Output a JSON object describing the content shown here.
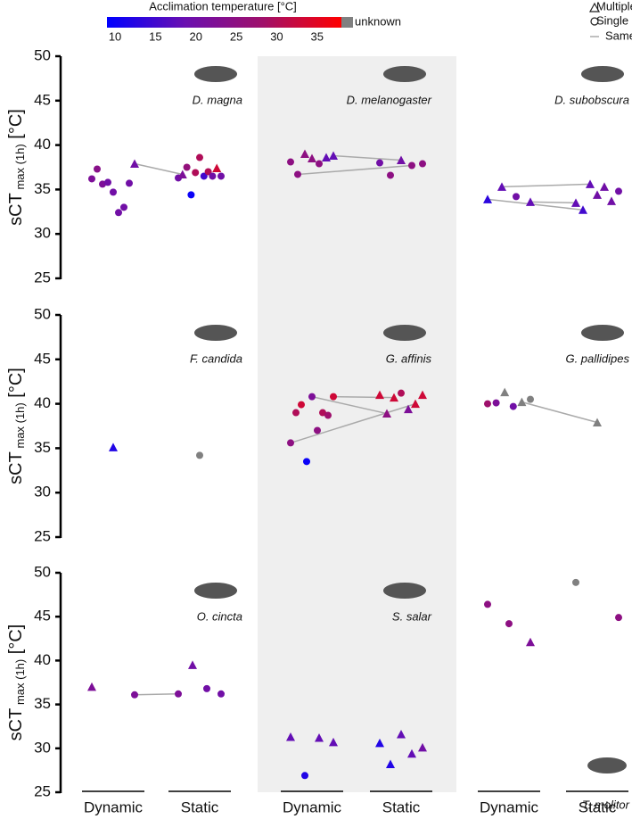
{
  "chart_data": {
    "type": "strip",
    "ylabel": "sCT",
    "ylabel_sub": "max (1h)",
    "ylabel_unit": "[°C]",
    "groups": [
      "Dynamic",
      "Static"
    ],
    "ylim": [
      25,
      50
    ],
    "yticks": [
      25,
      30,
      35,
      40,
      45,
      50
    ],
    "line_color": "#aaaaaa",
    "colorbar": {
      "title": "Acclimation temperature [°C]",
      "lim": [
        9,
        38
      ],
      "ticks": [
        10,
        15,
        20,
        25,
        30,
        35
      ],
      "colors": [
        "#0000ff",
        "#6a0fb0",
        "#a0106a",
        "#ff0000"
      ],
      "unknown_label": "unknown",
      "unknown_color": "#808080"
    },
    "legend": [
      "Multiple measurements",
      "Single measurement",
      "Same publication"
    ],
    "panels": [
      {
        "species": "D. magna",
        "dynamic": [
          {
            "value": 36.2,
            "temp": 22,
            "marker": "circle"
          },
          {
            "value": 37.3,
            "temp": 24,
            "marker": "circle"
          },
          {
            "value": 35.6,
            "temp": 22,
            "marker": "circle"
          },
          {
            "value": 35.8,
            "temp": 20,
            "marker": "circle"
          },
          {
            "value": 34.7,
            "temp": 20,
            "marker": "circle"
          },
          {
            "value": 32.4,
            "temp": 20,
            "marker": "circle"
          },
          {
            "value": 33.0,
            "temp": 20,
            "marker": "circle"
          },
          {
            "value": 35.7,
            "temp": 20,
            "marker": "circle"
          },
          {
            "value": 37.9,
            "temp": 20,
            "marker": "triangle"
          }
        ],
        "static": [
          {
            "value": 36.3,
            "temp": 20,
            "marker": "circle"
          },
          {
            "value": 36.7,
            "temp": 22,
            "marker": "triangle"
          },
          {
            "value": 37.5,
            "temp": 26,
            "marker": "circle"
          },
          {
            "value": 34.4,
            "temp": 10,
            "marker": "circle"
          },
          {
            "value": 36.9,
            "temp": 30,
            "marker": "circle"
          },
          {
            "value": 38.6,
            "temp": 30,
            "marker": "circle"
          },
          {
            "value": 36.5,
            "temp": 15,
            "marker": "circle"
          },
          {
            "value": 37.0,
            "temp": 30,
            "marker": "circle"
          },
          {
            "value": 36.5,
            "temp": 20,
            "marker": "circle"
          },
          {
            "value": 37.4,
            "temp": 33,
            "marker": "triangle"
          },
          {
            "value": 36.5,
            "temp": 20,
            "marker": "circle"
          }
        ],
        "links": [
          [
            8,
            1
          ]
        ]
      },
      {
        "species": "D. melanogaster",
        "dynamic": [
          {
            "value": 38.1,
            "temp": 25,
            "marker": "circle"
          },
          {
            "value": 36.7,
            "temp": 25,
            "marker": "circle"
          },
          {
            "value": 39.0,
            "temp": 25,
            "marker": "triangle"
          },
          {
            "value": 38.5,
            "temp": 25,
            "marker": "triangle"
          },
          {
            "value": 37.9,
            "temp": 25,
            "marker": "circle"
          },
          {
            "value": 38.6,
            "temp": 18,
            "marker": "triangle"
          },
          {
            "value": 38.8,
            "temp": 18,
            "marker": "triangle"
          }
        ],
        "static": [
          {
            "value": 38.0,
            "temp": 20,
            "marker": "circle"
          },
          {
            "value": 36.6,
            "temp": 25,
            "marker": "circle"
          },
          {
            "value": 38.3,
            "temp": 20,
            "marker": "triangle"
          },
          {
            "value": 37.7,
            "temp": 25,
            "marker": "circle"
          },
          {
            "value": 37.9,
            "temp": 25,
            "marker": "circle"
          }
        ],
        "links": [
          [
            6,
            2
          ],
          [
            1,
            3
          ]
        ]
      },
      {
        "species": "D. subobscura",
        "dynamic": [
          {
            "value": 33.9,
            "temp": 13,
            "marker": "triangle"
          },
          {
            "value": 35.3,
            "temp": 18,
            "marker": "triangle"
          },
          {
            "value": 34.2,
            "temp": 20,
            "marker": "circle"
          },
          {
            "value": 33.6,
            "temp": 18,
            "marker": "triangle"
          }
        ],
        "static": [
          {
            "value": 33.5,
            "temp": 18,
            "marker": "triangle"
          },
          {
            "value": 32.7,
            "temp": 15,
            "marker": "triangle"
          },
          {
            "value": 35.6,
            "temp": 18,
            "marker": "triangle"
          },
          {
            "value": 34.4,
            "temp": 20,
            "marker": "triangle"
          },
          {
            "value": 35.3,
            "temp": 20,
            "marker": "triangle"
          },
          {
            "value": 33.7,
            "temp": 20,
            "marker": "triangle"
          },
          {
            "value": 34.8,
            "temp": 20,
            "marker": "circle"
          }
        ],
        "links": [
          [
            1,
            2
          ],
          [
            0,
            1
          ],
          [
            3,
            0
          ]
        ]
      },
      {
        "species": "F. candida",
        "dynamic": [
          {
            "value": 35.1,
            "temp": 12,
            "marker": "triangle"
          }
        ],
        "static": [
          {
            "value": 34.2,
            "temp": null,
            "marker": "circle"
          }
        ],
        "links": []
      },
      {
        "species": "G. affinis",
        "dynamic": [
          {
            "value": 35.6,
            "temp": 25,
            "marker": "circle"
          },
          {
            "value": 39.0,
            "temp": 30,
            "marker": "circle"
          },
          {
            "value": 39.9,
            "temp": 33,
            "marker": "circle"
          },
          {
            "value": 33.5,
            "temp": 10,
            "marker": "circle"
          },
          {
            "value": 40.8,
            "temp": 22,
            "marker": "circle"
          },
          {
            "value": 37.0,
            "temp": 25,
            "marker": "circle"
          },
          {
            "value": 39.0,
            "temp": 30,
            "marker": "circle"
          },
          {
            "value": 38.7,
            "temp": 28,
            "marker": "circle"
          },
          {
            "value": 40.8,
            "temp": 33,
            "marker": "circle"
          }
        ],
        "static": [
          {
            "value": 41.0,
            "temp": 33,
            "marker": "triangle"
          },
          {
            "value": 38.9,
            "temp": 25,
            "marker": "triangle"
          },
          {
            "value": 40.7,
            "temp": 33,
            "marker": "triangle"
          },
          {
            "value": 41.2,
            "temp": 30,
            "marker": "circle"
          },
          {
            "value": 39.4,
            "temp": 22,
            "marker": "triangle"
          },
          {
            "value": 40.0,
            "temp": 33,
            "marker": "triangle"
          },
          {
            "value": 41.0,
            "temp": 33,
            "marker": "triangle"
          }
        ],
        "links": [
          [
            8,
            2
          ],
          [
            4,
            1
          ],
          [
            0,
            5
          ]
        ]
      },
      {
        "species": "G. pallidipes",
        "dynamic": [
          {
            "value": 40.0,
            "temp": 28,
            "marker": "circle"
          },
          {
            "value": 40.1,
            "temp": 22,
            "marker": "circle"
          },
          {
            "value": 41.3,
            "temp": null,
            "marker": "triangle"
          },
          {
            "value": 39.7,
            "temp": 20,
            "marker": "circle"
          },
          {
            "value": 40.2,
            "temp": null,
            "marker": "triangle"
          },
          {
            "value": 40.5,
            "temp": null,
            "marker": "circle"
          }
        ],
        "static": [
          {
            "value": 37.9,
            "temp": null,
            "marker": "triangle"
          }
        ],
        "links": [
          [
            4,
            0
          ]
        ]
      },
      {
        "species": "O. cincta",
        "dynamic": [
          {
            "value": 37.0,
            "temp": 22,
            "marker": "triangle"
          },
          {
            "value": 36.1,
            "temp": 22,
            "marker": "circle"
          }
        ],
        "static": [
          {
            "value": 36.2,
            "temp": 22,
            "marker": "circle"
          },
          {
            "value": 39.5,
            "temp": 20,
            "marker": "triangle"
          },
          {
            "value": 36.8,
            "temp": 20,
            "marker": "circle"
          },
          {
            "value": 36.2,
            "temp": 20,
            "marker": "circle"
          }
        ],
        "links": [
          [
            1,
            0
          ]
        ]
      },
      {
        "species": "S. salar",
        "dynamic": [
          {
            "value": 31.3,
            "temp": 18,
            "marker": "triangle"
          },
          {
            "value": 26.9,
            "temp": 12,
            "marker": "circle"
          },
          {
            "value": 31.2,
            "temp": 18,
            "marker": "triangle"
          },
          {
            "value": 30.7,
            "temp": 18,
            "marker": "triangle"
          }
        ],
        "static": [
          {
            "value": 30.6,
            "temp": 12,
            "marker": "triangle"
          },
          {
            "value": 28.2,
            "temp": 12,
            "marker": "triangle"
          },
          {
            "value": 31.6,
            "temp": 18,
            "marker": "triangle"
          },
          {
            "value": 29.4,
            "temp": 18,
            "marker": "triangle"
          },
          {
            "value": 30.1,
            "temp": 20,
            "marker": "triangle"
          }
        ],
        "links": []
      },
      {
        "species": "T. molitor",
        "dynamic": [
          {
            "value": 46.4,
            "temp": 25,
            "marker": "circle"
          },
          {
            "value": 44.2,
            "temp": 25,
            "marker": "circle"
          },
          {
            "value": 42.1,
            "temp": 22,
            "marker": "triangle"
          }
        ],
        "static": [
          {
            "value": 48.9,
            "temp": null,
            "marker": "circle"
          },
          {
            "value": 44.9,
            "temp": 25,
            "marker": "circle"
          }
        ],
        "links": []
      }
    ]
  }
}
